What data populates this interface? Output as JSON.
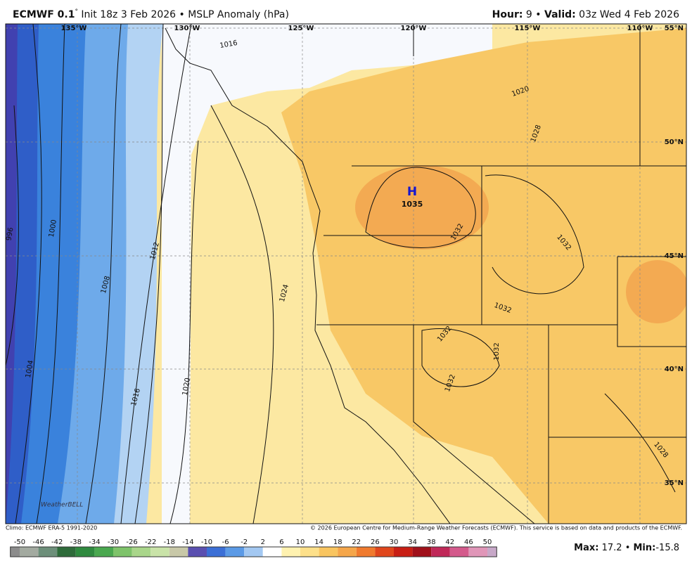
{
  "header": {
    "left": [
      "ECMWF 0.1",
      "°",
      " Init 18z 3 Feb 2026 • MSLP Anomaly (hPa)"
    ],
    "right": [
      "Hour:",
      " 9 • ",
      "Valid:",
      " 03z Wed 4 Feb 2026"
    ]
  },
  "map": {
    "longitudes": [
      "135°W",
      "130°W",
      "125°W",
      "120°W",
      "115°W",
      "110°W"
    ],
    "latitudes": [
      "55°N",
      "50°N",
      "45°N",
      "40°N",
      "35°N"
    ],
    "high": {
      "symbol": "H",
      "pressure": "1035"
    },
    "contour_labels": [
      "1016",
      "1020",
      "1028",
      "1032",
      "1032",
      "1032",
      "1032",
      "1032",
      "1032",
      "1028",
      "1024",
      "1020",
      "1016",
      "1012",
      "1008",
      "1004",
      "1000",
      "996"
    ],
    "logo": "WeatherBELL"
  },
  "footer": {
    "climo": "Climo: ECMWF ERA-5 1991-2020",
    "copyright": "© 2026 European Centre for Medium-Range Weather Forecasts (ECMWF). This service is based on data and products of the ECMWF."
  },
  "colorbar": {
    "ticks": [
      -50,
      -46,
      -42,
      -38,
      -34,
      -30,
      -26,
      -22,
      -18,
      -14,
      -10,
      -6,
      -2,
      2,
      6,
      10,
      14,
      18,
      22,
      26,
      30,
      34,
      38,
      42,
      46,
      50
    ],
    "colors": [
      "#8c8c8c",
      "#a3aaa0",
      "#6d8f7a",
      "#2e6b3a",
      "#2f8a3f",
      "#4aa84f",
      "#7ec36a",
      "#a9d68a",
      "#c9e3a8",
      "#c8c8a8",
      "#5a4fb0",
      "#3b6fd6",
      "#5b9ae6",
      "#a3c8f2",
      "#ffffff",
      "#fff2b0",
      "#fde08a",
      "#f9c560",
      "#f5a64a",
      "#f07a2e",
      "#e0461c",
      "#c81e14",
      "#a0101a",
      "#c02858",
      "#d45a8c",
      "#e096b8",
      "#c7a8c8"
    ]
  },
  "stats": {
    "max_label": "Max:",
    "max": 17.2,
    "separator": "•",
    "min_label": "Min:",
    "min": -15.8
  }
}
